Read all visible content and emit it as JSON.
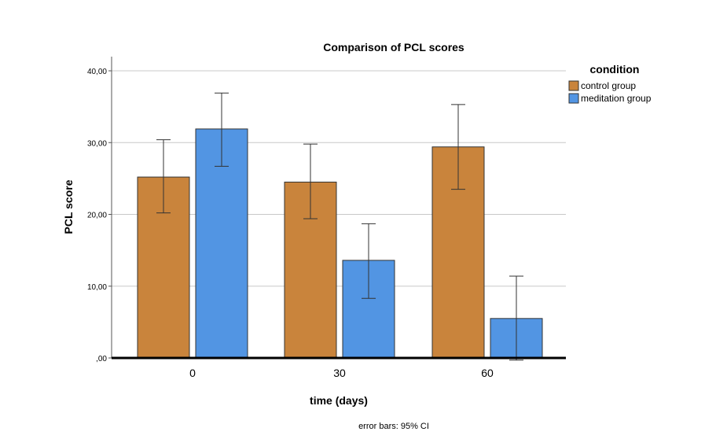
{
  "chart_data": {
    "type": "bar",
    "title": "Comparison of PCL scores",
    "xlabel": "time (days)",
    "ylabel": "PCL score",
    "ylim": [
      0,
      40
    ],
    "yticks": [
      0,
      10,
      20,
      30,
      40
    ],
    "ytick_labels": [
      ",00",
      "10,00",
      "20,00",
      "30,00",
      "40,00"
    ],
    "categories": [
      "0",
      "30",
      "60"
    ],
    "grid": true,
    "legend_title": "condition",
    "legend_position": "top-right",
    "footnote": "error bars: 95% CI",
    "series": [
      {
        "name": "control group",
        "color": "#C9843C",
        "values": [
          25.2,
          24.5,
          29.4
        ],
        "ci_low": [
          20.2,
          19.4,
          23.5
        ],
        "ci_high": [
          30.4,
          29.8,
          35.3
        ]
      },
      {
        "name": "meditation group",
        "color": "#5295E3",
        "values": [
          31.9,
          13.6,
          5.5
        ],
        "ci_low": [
          26.7,
          8.3,
          -0.3
        ],
        "ci_high": [
          36.9,
          18.7,
          11.4
        ]
      }
    ]
  }
}
